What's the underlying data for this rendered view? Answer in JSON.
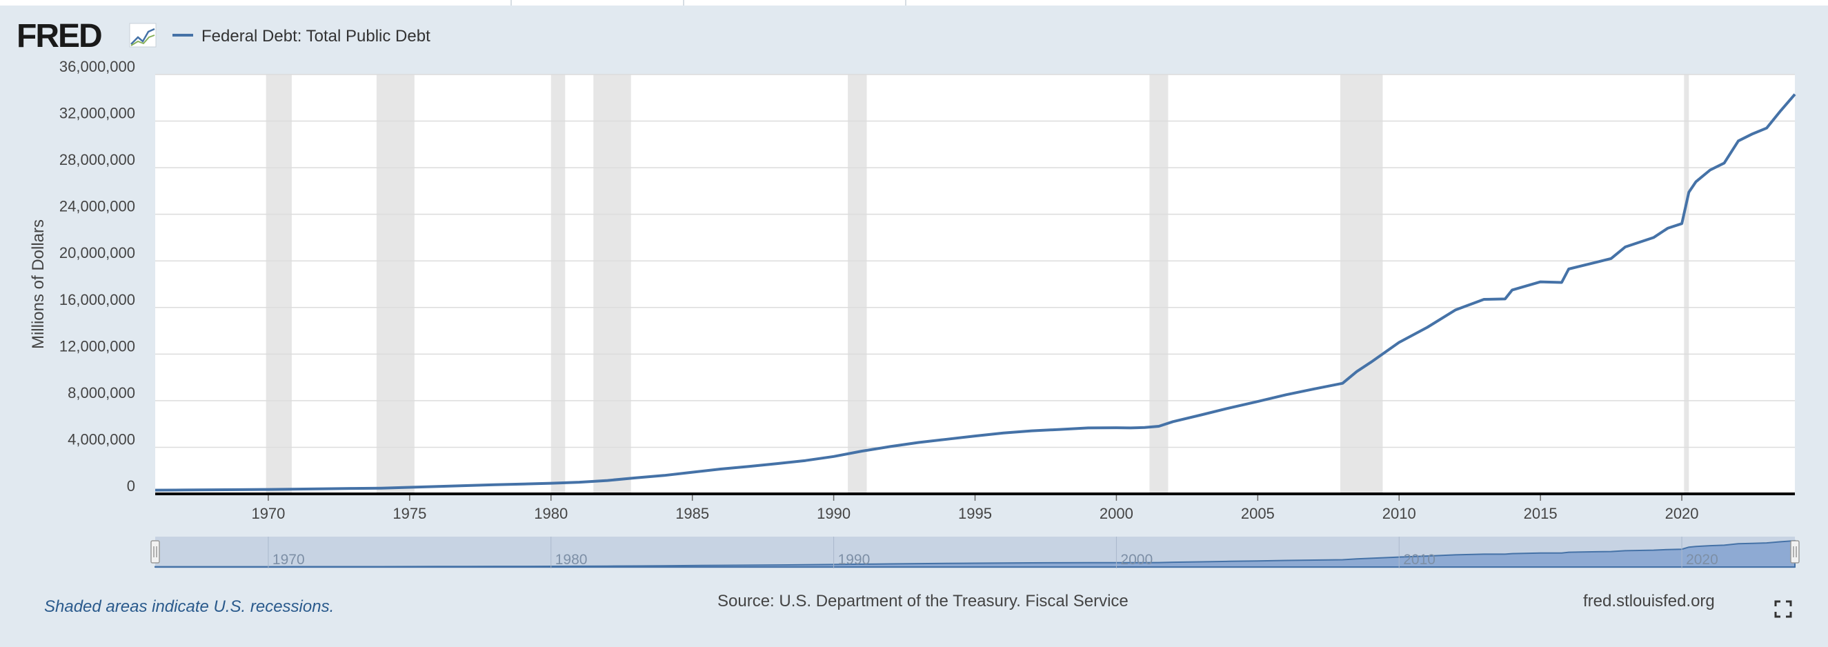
{
  "header": {
    "logo_text": "FRED",
    "legend_label": "Federal Debt: Total Public Debt"
  },
  "footer": {
    "recession_note": "Shaded areas indicate U.S. recessions.",
    "source": "Source: U.S. Department of the Treasury. Fiscal Service",
    "site": "fred.stlouisfed.org"
  },
  "colors": {
    "background": "#e1e9f0",
    "series": "#4572a7",
    "recession": "#e6e6e6",
    "navigator_fill": "#b8c7df"
  },
  "icons": [
    "fred-graph-icon",
    "fullscreen-icon",
    "navigator-handle-icon"
  ],
  "chart_data": {
    "type": "line",
    "title": "",
    "xlabel": "",
    "ylabel": "Millions of Dollars",
    "xlim": [
      1966.0,
      2024.0
    ],
    "ylim": [
      0,
      36000000
    ],
    "y_ticks": [
      0,
      4000000,
      8000000,
      12000000,
      16000000,
      20000000,
      24000000,
      28000000,
      32000000,
      36000000
    ],
    "y_tick_labels": [
      "0",
      "4,000,000",
      "8,000,000",
      "12,000,000",
      "16,000,000",
      "20,000,000",
      "24,000,000",
      "28,000,000",
      "32,000,000",
      "36,000,000"
    ],
    "x_ticks": [
      1970,
      1975,
      1980,
      1985,
      1990,
      1995,
      2000,
      2005,
      2010,
      2015,
      2020
    ],
    "x_tick_labels": [
      "1970",
      "1975",
      "1980",
      "1985",
      "1990",
      "1995",
      "2000",
      "2005",
      "2010",
      "2015",
      "2020"
    ],
    "navigator_ticks": [
      1970,
      1980,
      1990,
      2000,
      2010,
      2020
    ],
    "navigator_tick_labels": [
      "1970",
      "1980",
      "1990",
      "2000",
      "2010",
      "2020"
    ],
    "grid": true,
    "legend": "top-left",
    "recessions": [
      [
        1969.92,
        1970.83
      ],
      [
        1973.83,
        1975.17
      ],
      [
        1980.0,
        1980.5
      ],
      [
        1981.5,
        1982.83
      ],
      [
        1990.5,
        1991.17
      ],
      [
        2001.17,
        2001.83
      ],
      [
        2007.92,
        2009.42
      ],
      [
        2020.08,
        2020.25
      ]
    ],
    "series": [
      {
        "name": "Federal Debt: Total Public Debt",
        "x": [
          1966.0,
          1967.0,
          1968.0,
          1969.0,
          1970.0,
          1971.0,
          1972.0,
          1973.0,
          1974.0,
          1975.0,
          1976.0,
          1977.0,
          1978.0,
          1979.0,
          1980.0,
          1981.0,
          1982.0,
          1983.0,
          1984.0,
          1985.0,
          1986.0,
          1987.0,
          1988.0,
          1989.0,
          1990.0,
          1991.0,
          1992.0,
          1993.0,
          1994.0,
          1995.0,
          1996.0,
          1997.0,
          1998.0,
          1999.0,
          2000.0,
          2000.5,
          2001.0,
          2001.5,
          2002.0,
          2003.0,
          2004.0,
          2005.0,
          2006.0,
          2007.0,
          2008.0,
          2008.5,
          2009.0,
          2010.0,
          2011.0,
          2012.0,
          2013.0,
          2013.75,
          2014.0,
          2015.0,
          2015.75,
          2016.0,
          2017.0,
          2017.5,
          2018.0,
          2019.0,
          2019.5,
          2020.0,
          2020.25,
          2020.5,
          2021.0,
          2021.5,
          2022.0,
          2022.5,
          2023.0,
          2023.5,
          2024.0
        ],
        "y": [
          320000,
          330000,
          350000,
          360000,
          380000,
          410000,
          440000,
          470000,
          490000,
          560000,
          640000,
          710000,
          780000,
          840000,
          910000,
          1000000,
          1150000,
          1380000,
          1580000,
          1860000,
          2130000,
          2350000,
          2600000,
          2860000,
          3210000,
          3670000,
          4060000,
          4410000,
          4690000,
          4970000,
          5220000,
          5410000,
          5530000,
          5660000,
          5680000,
          5660000,
          5700000,
          5800000,
          6200000,
          6780000,
          7380000,
          7930000,
          8510000,
          9010000,
          9490000,
          10500000,
          11300000,
          13000000,
          14300000,
          15800000,
          16700000,
          16730000,
          17500000,
          18200000,
          18150000,
          19300000,
          19900000,
          20200000,
          21200000,
          22000000,
          22800000,
          23200000,
          25900000,
          26800000,
          27800000,
          28400000,
          30300000,
          30900000,
          31400000,
          32900000,
          34300000
        ]
      }
    ]
  }
}
